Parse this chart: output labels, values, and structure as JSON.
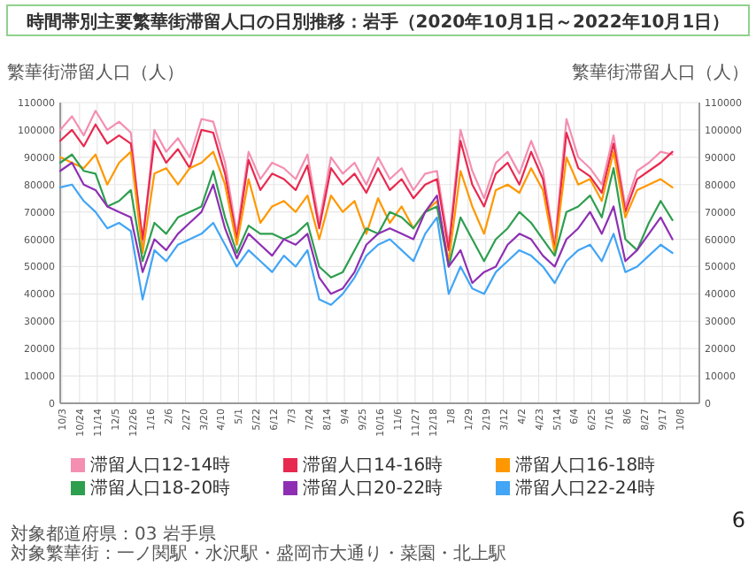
{
  "chart_data": {
    "type": "line",
    "title": "時間帯別主要繁華街滞留人口の日別推移：岩手（2020年10月1日～2022年10月1日）",
    "ylabel": "繁華街滞留人口（人）",
    "y2label": "繁華街滞留人口（人）",
    "x": [
      "2020-10-01",
      "2020-10-15",
      "2020-10-29",
      "2020-11-12",
      "2020-11-26",
      "2020-12-10",
      "2020-12-24",
      "2021-01-07",
      "2021-01-21",
      "2021-02-04",
      "2021-02-18",
      "2021-03-04",
      "2021-03-18",
      "2021-04-01",
      "2021-04-15",
      "2021-04-29",
      "2021-05-13",
      "2021-05-27",
      "2021-06-10",
      "2021-06-24",
      "2021-07-08",
      "2021-07-22",
      "2021-08-05",
      "2021-08-19",
      "2021-09-02",
      "2021-09-16",
      "2021-09-30",
      "2021-10-14",
      "2021-10-28",
      "2021-11-11",
      "2021-11-25",
      "2021-12-09",
      "2021-12-23",
      "2022-01-06",
      "2022-01-20",
      "2022-02-03",
      "2022-02-17",
      "2022-03-03",
      "2022-03-17",
      "2022-03-31",
      "2022-04-14",
      "2022-04-28",
      "2022-05-12",
      "2022-05-26",
      "2022-06-09",
      "2022-06-23",
      "2022-07-07",
      "2022-07-21",
      "2022-08-04",
      "2022-08-18",
      "2022-09-01",
      "2022-09-15",
      "2022-09-29"
    ],
    "series": [
      {
        "name": "滞留人口12-14時",
        "color": "#f48fb1",
        "values": [
          100000,
          105000,
          98000,
          107000,
          100000,
          103000,
          99000,
          58000,
          100000,
          92000,
          97000,
          90000,
          104000,
          103000,
          88000,
          62000,
          92000,
          82000,
          88000,
          86000,
          82000,
          91000,
          66000,
          90000,
          84000,
          88000,
          80000,
          90000,
          82000,
          86000,
          78000,
          84000,
          85000,
          58000,
          100000,
          85000,
          75000,
          88000,
          92000,
          84000,
          96000,
          85000,
          58000,
          104000,
          90000,
          86000,
          80000,
          98000,
          72000,
          85000,
          88000,
          92000,
          91000
        ]
      },
      {
        "name": "滞留人口14-16時",
        "color": "#e8294f",
        "values": [
          96000,
          100000,
          94000,
          102000,
          95000,
          98000,
          95000,
          60000,
          96000,
          88000,
          93000,
          86000,
          100000,
          99000,
          84000,
          60000,
          89000,
          78000,
          84000,
          82000,
          78000,
          87000,
          64000,
          86000,
          80000,
          84000,
          77000,
          86000,
          78000,
          82000,
          75000,
          80000,
          82000,
          56000,
          96000,
          80000,
          72000,
          84000,
          88000,
          80000,
          92000,
          82000,
          56000,
          99000,
          86000,
          83000,
          77000,
          95000,
          70000,
          82000,
          85000,
          88000,
          92000
        ]
      },
      {
        "name": "滞留人口16-18時",
        "color": "#ff9800",
        "values": [
          90000,
          88000,
          86000,
          91000,
          80000,
          88000,
          92000,
          55000,
          84000,
          86000,
          80000,
          86000,
          88000,
          92000,
          80000,
          58000,
          82000,
          66000,
          72000,
          74000,
          70000,
          76000,
          60000,
          76000,
          70000,
          74000,
          62000,
          75000,
          66000,
          72000,
          64000,
          70000,
          74000,
          52000,
          85000,
          72000,
          62000,
          78000,
          80000,
          77000,
          86000,
          78000,
          55000,
          90000,
          80000,
          82000,
          74000,
          92000,
          68000,
          78000,
          80000,
          82000,
          79000
        ]
      },
      {
        "name": "滞留人口18-20時",
        "color": "#2e9e4f",
        "values": [
          88000,
          91000,
          85000,
          84000,
          72000,
          74000,
          78000,
          52000,
          66000,
          62000,
          68000,
          70000,
          72000,
          85000,
          68000,
          55000,
          65000,
          62000,
          62000,
          60000,
          62000,
          66000,
          50000,
          46000,
          48000,
          56000,
          64000,
          62000,
          70000,
          68000,
          64000,
          70000,
          72000,
          50000,
          68000,
          60000,
          52000,
          60000,
          64000,
          70000,
          66000,
          60000,
          54000,
          70000,
          72000,
          76000,
          68000,
          86000,
          60000,
          56000,
          66000,
          74000,
          67000
        ]
      },
      {
        "name": "滞留人口20-22時",
        "color": "#8e2fb3",
        "values": [
          85000,
          88000,
          80000,
          78000,
          72000,
          70000,
          68000,
          48000,
          60000,
          56000,
          62000,
          66000,
          70000,
          80000,
          64000,
          53000,
          62000,
          58000,
          54000,
          60000,
          58000,
          62000,
          46000,
          40000,
          42000,
          48000,
          58000,
          62000,
          64000,
          62000,
          60000,
          70000,
          76000,
          50000,
          56000,
          44000,
          48000,
          50000,
          58000,
          62000,
          60000,
          54000,
          50000,
          60000,
          64000,
          70000,
          62000,
          72000,
          52000,
          56000,
          62000,
          68000,
          60000
        ]
      },
      {
        "name": "滞留人口22-24時",
        "color": "#42a5f5",
        "values": [
          79000,
          80000,
          74000,
          70000,
          64000,
          66000,
          63000,
          38000,
          56000,
          52000,
          58000,
          60000,
          62000,
          66000,
          58000,
          50000,
          56000,
          52000,
          48000,
          54000,
          50000,
          56000,
          38000,
          36000,
          40000,
          46000,
          54000,
          58000,
          60000,
          56000,
          52000,
          62000,
          68000,
          40000,
          50000,
          42000,
          40000,
          48000,
          52000,
          56000,
          54000,
          50000,
          44000,
          52000,
          56000,
          58000,
          52000,
          62000,
          48000,
          50000,
          54000,
          58000,
          55000
        ]
      }
    ],
    "xlim": [
      "2020-10-01",
      "2022-10-31"
    ],
    "xticks": [
      {
        "value": "2020-10-03",
        "label": "10/3"
      },
      {
        "value": "2020-10-24",
        "label": "10/24"
      },
      {
        "value": "2020-11-14",
        "label": "11/14"
      },
      {
        "value": "2020-12-05",
        "label": "12/5"
      },
      {
        "value": "2020-12-26",
        "label": "12/26"
      },
      {
        "value": "2021-01-16",
        "label": "1/16"
      },
      {
        "value": "2021-02-06",
        "label": "2/6"
      },
      {
        "value": "2021-02-27",
        "label": "2/27"
      },
      {
        "value": "2021-03-20",
        "label": "3/20"
      },
      {
        "value": "2021-04-10",
        "label": "4/10"
      },
      {
        "value": "2021-05-01",
        "label": "5/1"
      },
      {
        "value": "2021-05-22",
        "label": "5/22"
      },
      {
        "value": "2021-06-12",
        "label": "6/12"
      },
      {
        "value": "2021-07-03",
        "label": "7/3"
      },
      {
        "value": "2021-07-24",
        "label": "7/24"
      },
      {
        "value": "2021-08-14",
        "label": "8/14"
      },
      {
        "value": "2021-09-04",
        "label": "9/4"
      },
      {
        "value": "2021-09-25",
        "label": "9/25"
      },
      {
        "value": "2021-10-16",
        "label": "10/16"
      },
      {
        "value": "2021-11-06",
        "label": "11/6"
      },
      {
        "value": "2021-11-27",
        "label": "11/27"
      },
      {
        "value": "2021-12-18",
        "label": "12/18"
      },
      {
        "value": "2022-01-08",
        "label": "1/8"
      },
      {
        "value": "2022-01-29",
        "label": "1/29"
      },
      {
        "value": "2022-02-19",
        "label": "2/19"
      },
      {
        "value": "2022-03-12",
        "label": "3/12"
      },
      {
        "value": "2022-04-02",
        "label": "4/2"
      },
      {
        "value": "2022-04-23",
        "label": "4/23"
      },
      {
        "value": "2022-05-14",
        "label": "5/14"
      },
      {
        "value": "2022-06-04",
        "label": "6/4"
      },
      {
        "value": "2022-06-25",
        "label": "6/25"
      },
      {
        "value": "2022-07-16",
        "label": "7/16"
      },
      {
        "value": "2022-08-06",
        "label": "8/6"
      },
      {
        "value": "2022-08-27",
        "label": "8/27"
      },
      {
        "value": "2022-09-17",
        "label": "9/17"
      },
      {
        "value": "2022-10-08",
        "label": "10/8"
      }
    ],
    "ylim": [
      0,
      110000
    ],
    "yticks": [
      0,
      10000,
      20000,
      30000,
      40000,
      50000,
      60000,
      70000,
      80000,
      90000,
      100000,
      110000
    ],
    "y2lim": [
      0,
      110000
    ],
    "y2ticks": [
      0,
      10000,
      20000,
      30000,
      40000,
      50000,
      60000,
      70000,
      80000,
      90000,
      100000,
      110000
    ],
    "grid": true,
    "legend": "bottom",
    "marker": "none",
    "line_style": "solid",
    "annotations": [
      "対象都道府県：03 岩手県",
      "対象繁華街：一ノ関駅・水沢駅・盛岡市大通り・菜園・北上駅",
      "6"
    ]
  }
}
